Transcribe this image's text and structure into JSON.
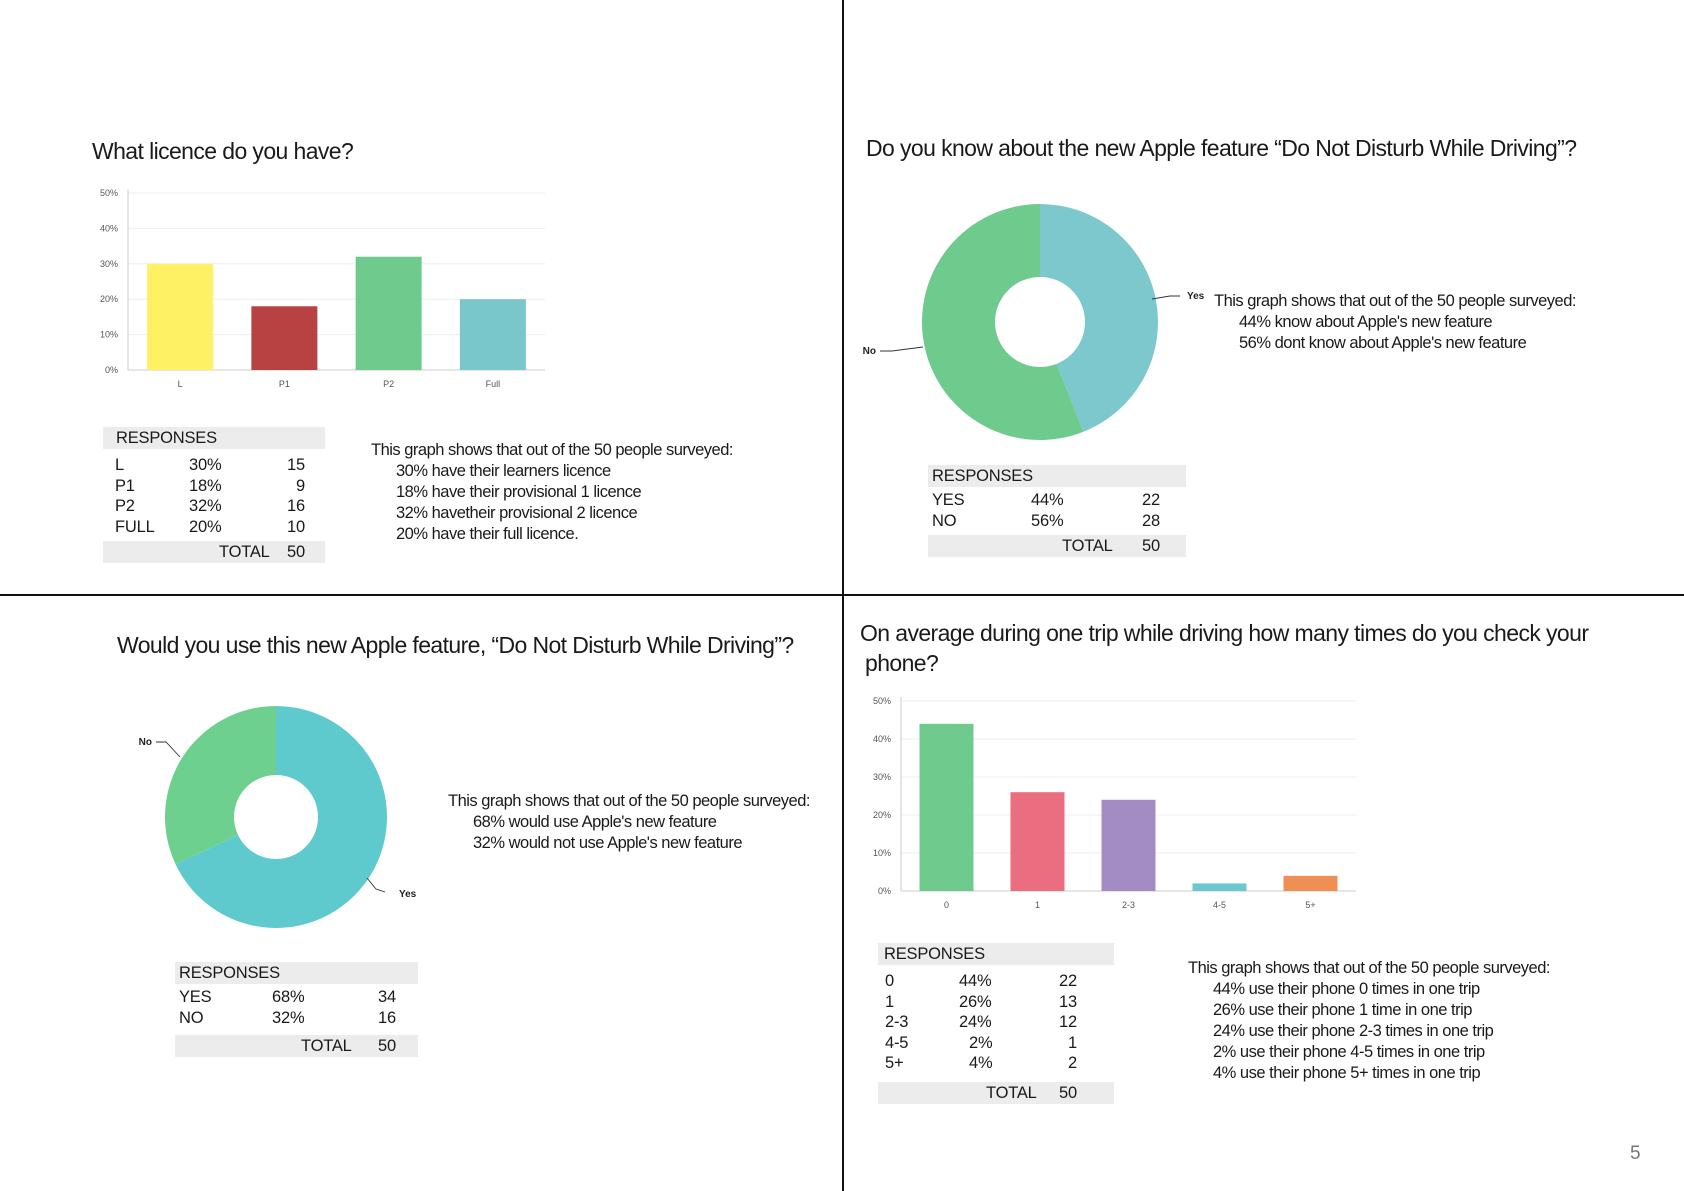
{
  "page_number": "5",
  "q1": {
    "title": "What licence do you have?",
    "desc": [
      "This graph shows that out of the 50 people surveyed:",
      "30% have their learners licence",
      "18% have their provisional 1 licence",
      "32% havetheir provisional 2 licence",
      "20% have their full licence."
    ],
    "responses": {
      "header": "RESPONSES",
      "rows": [
        [
          "L",
          "30%",
          "15"
        ],
        [
          "P1",
          "18%",
          "9"
        ],
        [
          "P2",
          "32%",
          "16"
        ],
        [
          "FULL",
          "20%",
          "10"
        ]
      ],
      "total_label": "TOTAL",
      "total": "50"
    }
  },
  "q2": {
    "title": "Do you know about the new Apple feature “Do Not Disturb While Driving”?",
    "desc": [
      "This graph shows that out of the 50 people surveyed:",
      "44% know about Apple's new feature",
      "56% dont know about Apple's new feature"
    ],
    "responses": {
      "header": "RESPONSES",
      "rows": [
        [
          "YES",
          "44%",
          "22"
        ],
        [
          "NO",
          "56%",
          "28"
        ]
      ],
      "total_label": "TOTAL",
      "total": "50"
    }
  },
  "q3": {
    "title": "Would you use this new Apple feature, “Do Not Disturb While Driving”?",
    "desc": [
      "This graph shows that out of the 50 people surveyed:",
      "68% would use Apple's new feature",
      "32% would not use Apple's new feature"
    ],
    "responses": {
      "header": "RESPONSES",
      "rows": [
        [
          "YES",
          "68%",
          "34"
        ],
        [
          "NO",
          "32%",
          "16"
        ]
      ],
      "total_label": "TOTAL",
      "total": "50"
    }
  },
  "q4": {
    "title_line1": "On average during one trip while driving how many times do you check your",
    "title_line2": "phone?",
    "desc": [
      "This graph shows that out of the 50 people surveyed:",
      "44% use their phone 0 times in one trip",
      "26% use their phone 1 time in one trip",
      "24% use their phone 2-3 times in one trip",
      "2% use their phone 4-5 times in one trip",
      "4% use their phone 5+ times in one trip"
    ],
    "responses": {
      "header": "RESPONSES",
      "rows": [
        [
          "0",
          "44%",
          "22"
        ],
        [
          "1",
          "26%",
          "13"
        ],
        [
          "2-3",
          "24%",
          "12"
        ],
        [
          "4-5",
          "2%",
          "1"
        ],
        [
          "5+",
          "4%",
          "2"
        ]
      ],
      "total_label": "TOTAL",
      "total": "50"
    }
  },
  "chart_data": [
    {
      "type": "bar",
      "categories": [
        "L",
        "P1",
        "P2",
        "Full"
      ],
      "values": [
        30,
        18,
        32,
        20
      ],
      "colors": [
        "#fff064",
        "#b84242",
        "#6ecb8d",
        "#79c7cb"
      ],
      "ylim": [
        0,
        50
      ],
      "yticks": [
        "0%",
        "10%",
        "20%",
        "30%",
        "40%",
        "50%"
      ],
      "grid": true
    },
    {
      "type": "pie",
      "donut": true,
      "labels": [
        "Yes",
        "No"
      ],
      "values": [
        44,
        56
      ],
      "colors": [
        "#7cc8cc",
        "#6fcb8d"
      ]
    },
    {
      "type": "pie",
      "donut": true,
      "labels": [
        "Yes",
        "No"
      ],
      "values": [
        68,
        32
      ],
      "colors": [
        "#5fcace",
        "#6dd08f"
      ]
    },
    {
      "type": "bar",
      "categories": [
        "0",
        "1",
        "2-3",
        "4-5",
        "5+"
      ],
      "values": [
        44,
        26,
        24,
        2,
        4
      ],
      "colors": [
        "#6fcb8d",
        "#ea6d80",
        "#a38bc3",
        "#6cc8cf",
        "#ef8f55"
      ],
      "ylim": [
        0,
        50
      ],
      "yticks": [
        "0%",
        "10%",
        "20%",
        "30%",
        "40%",
        "50%"
      ],
      "grid": true
    }
  ]
}
